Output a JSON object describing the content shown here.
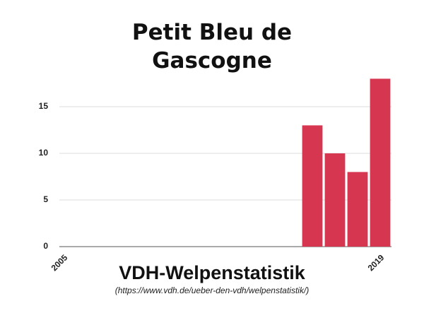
{
  "chart_data": {
    "type": "bar",
    "title": "Petit Bleu de Gascogne",
    "subtitle": "VDH-Welpenstatistik",
    "caption": "(https://www.vdh.de/ueber-den-vdh/welpenstatistik/)",
    "categories": [
      "2005",
      null,
      null,
      null,
      null,
      null,
      null,
      null,
      null,
      null,
      null,
      null,
      null,
      null,
      "2019"
    ],
    "values": [
      null,
      null,
      null,
      null,
      null,
      null,
      null,
      null,
      null,
      null,
      null,
      13,
      10,
      8,
      18
    ],
    "color": "#d6364f",
    "ylim": [
      0,
      18
    ],
    "yticks": [
      0,
      5,
      10,
      15
    ],
    "grid": true
  }
}
